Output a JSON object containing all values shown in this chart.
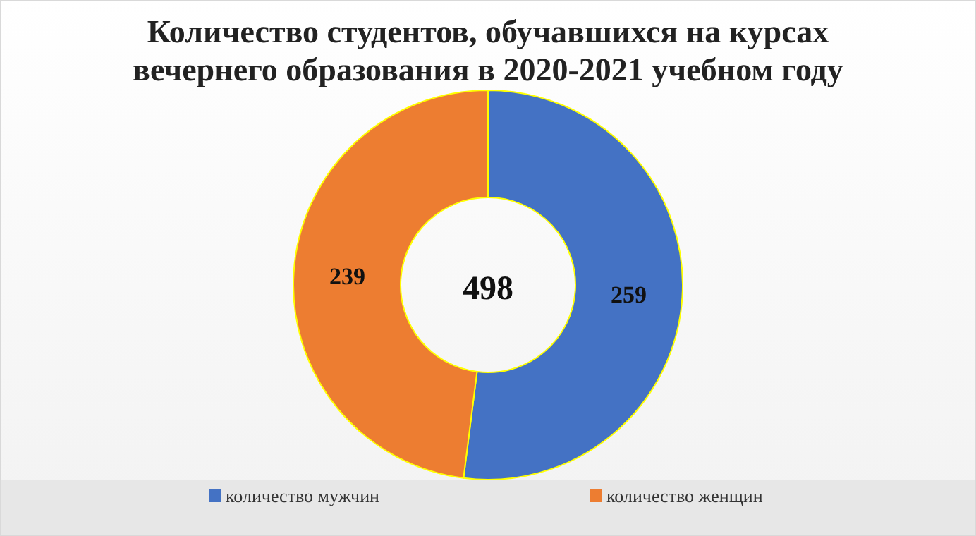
{
  "chart_data": {
    "type": "donut",
    "title": "Количество студентов, обучавшихся на курсах вечернего образования в 2020-2021 учебном году",
    "categories": [
      "количество мужчин",
      "количество женщин"
    ],
    "values": [
      259,
      239
    ],
    "colors": [
      "#4472c4",
      "#ed7d31"
    ],
    "data_labels": true,
    "annotations": [
      "498"
    ],
    "legend": "bottom"
  }
}
